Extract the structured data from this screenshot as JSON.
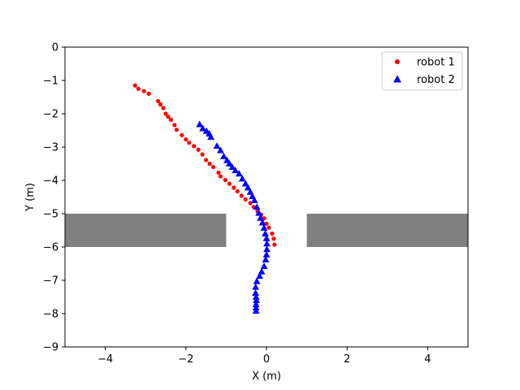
{
  "chart_data": {
    "type": "scatter",
    "xlabel": "X (m)",
    "ylabel": "Y (m)",
    "xlim": [
      -5,
      5
    ],
    "ylim": [
      -9,
      0
    ],
    "x_ticks": [
      -4,
      -2,
      0,
      2,
      4
    ],
    "x_tick_labels": [
      "−4",
      "−2",
      "0",
      "2",
      "4"
    ],
    "y_ticks": [
      0,
      -1,
      -2,
      -3,
      -4,
      -5,
      -6,
      -7,
      -8,
      -9
    ],
    "y_tick_labels": [
      "0",
      "−1",
      "−2",
      "−3",
      "−4",
      "−5",
      "−6",
      "−7",
      "−8",
      "−9"
    ],
    "grid": false,
    "legend_position": "top-right",
    "obstacles": [
      {
        "x": [
          -5,
          -1
        ],
        "y": [
          -6,
          -5
        ],
        "color": "#808080"
      },
      {
        "x": [
          1,
          5
        ],
        "y": [
          -6,
          -5
        ],
        "color": "#808080"
      }
    ],
    "series": [
      {
        "name": "robot 1",
        "marker": "circle",
        "color": "#ff0000",
        "points": [
          [
            -3.26,
            -1.15
          ],
          [
            -3.18,
            -1.25
          ],
          [
            -3.04,
            -1.32
          ],
          [
            -2.92,
            -1.4
          ],
          [
            -2.69,
            -1.62
          ],
          [
            -2.63,
            -1.72
          ],
          [
            -2.56,
            -1.83
          ],
          [
            -2.5,
            -2.0
          ],
          [
            -2.44,
            -2.09
          ],
          [
            -2.37,
            -2.18
          ],
          [
            -2.28,
            -2.34
          ],
          [
            -2.23,
            -2.48
          ],
          [
            -2.1,
            -2.64
          ],
          [
            -2.0,
            -2.77
          ],
          [
            -1.92,
            -2.87
          ],
          [
            -1.8,
            -2.97
          ],
          [
            -1.69,
            -3.08
          ],
          [
            -1.59,
            -3.22
          ],
          [
            -1.5,
            -3.39
          ],
          [
            -1.41,
            -3.5
          ],
          [
            -1.32,
            -3.6
          ],
          [
            -1.19,
            -3.77
          ],
          [
            -1.14,
            -3.88
          ],
          [
            -1.02,
            -3.99
          ],
          [
            -0.92,
            -4.1
          ],
          [
            -0.81,
            -4.22
          ],
          [
            -0.72,
            -4.33
          ],
          [
            -0.62,
            -4.46
          ],
          [
            -0.52,
            -4.57
          ],
          [
            -0.4,
            -4.68
          ],
          [
            -0.32,
            -4.8
          ],
          [
            -0.22,
            -4.93
          ],
          [
            -0.13,
            -5.03
          ],
          [
            -0.06,
            -5.14
          ],
          [
            0.0,
            -5.3
          ],
          [
            0.06,
            -5.42
          ],
          [
            0.14,
            -5.6
          ],
          [
            0.18,
            -5.75
          ],
          [
            0.2,
            -5.93
          ]
        ]
      },
      {
        "name": "robot 2",
        "marker": "triangle",
        "color": "#0000ff",
        "points": [
          [
            -1.66,
            -2.32
          ],
          [
            -1.58,
            -2.44
          ],
          [
            -1.49,
            -2.52
          ],
          [
            -1.42,
            -2.6
          ],
          [
            -1.38,
            -2.7
          ],
          [
            -1.23,
            -2.97
          ],
          [
            -1.14,
            -3.1
          ],
          [
            -1.06,
            -3.28
          ],
          [
            -0.98,
            -3.4
          ],
          [
            -0.92,
            -3.5
          ],
          [
            -0.85,
            -3.6
          ],
          [
            -0.77,
            -3.7
          ],
          [
            -0.68,
            -3.8
          ],
          [
            -0.6,
            -3.95
          ],
          [
            -0.52,
            -4.1
          ],
          [
            -0.46,
            -4.22
          ],
          [
            -0.4,
            -4.35
          ],
          [
            -0.35,
            -4.48
          ],
          [
            -0.3,
            -4.6
          ],
          [
            -0.24,
            -4.8
          ],
          [
            -0.19,
            -4.98
          ],
          [
            -0.15,
            -5.13
          ],
          [
            -0.1,
            -5.27
          ],
          [
            -0.06,
            -5.43
          ],
          [
            -0.03,
            -5.6
          ],
          [
            0.0,
            -5.74
          ],
          [
            0.01,
            -5.9
          ],
          [
            0.01,
            -6.07
          ],
          [
            0.0,
            -6.23
          ],
          [
            -0.02,
            -6.38
          ],
          [
            -0.06,
            -6.58
          ],
          [
            -0.12,
            -6.74
          ],
          [
            -0.17,
            -6.87
          ],
          [
            -0.24,
            -7.03
          ],
          [
            -0.27,
            -7.2
          ],
          [
            -0.27,
            -7.38
          ],
          [
            -0.26,
            -7.5
          ],
          [
            -0.25,
            -7.6
          ],
          [
            -0.26,
            -7.72
          ],
          [
            -0.26,
            -7.82
          ],
          [
            -0.26,
            -7.92
          ]
        ]
      }
    ]
  }
}
